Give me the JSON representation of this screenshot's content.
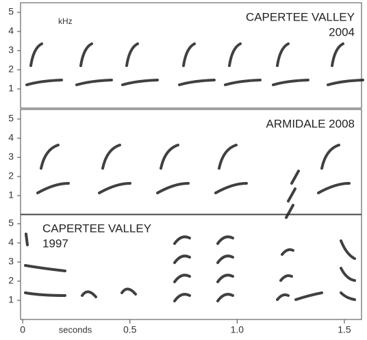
{
  "chart_data": [
    {
      "type": "spectrogram",
      "title": [
        "CAPERTEE VALLEY",
        "2004"
      ],
      "title_align": "right",
      "ylabel": "kHz",
      "ylim": [
        0,
        5.5
      ],
      "yticks": [
        1,
        2,
        3,
        4,
        5
      ]
    },
    {
      "type": "spectrogram",
      "title": [
        "ARMIDALE 2008"
      ],
      "title_align": "right",
      "ylim": [
        0,
        5.5
      ],
      "yticks": [
        1,
        2,
        3,
        4,
        5
      ]
    },
    {
      "type": "spectrogram",
      "title": [
        "CAPERTEE VALLEY",
        "1997"
      ],
      "title_align": "left",
      "ylim": [
        0,
        5.5
      ],
      "yticks": [
        1,
        2,
        3,
        4,
        5
      ],
      "xlabel": "seconds",
      "xlim": [
        -0.01,
        1.58
      ],
      "xticks": [
        0,
        0.5,
        {
          "value": 1,
          "label": "1.0"
        },
        1.5
      ]
    }
  ]
}
